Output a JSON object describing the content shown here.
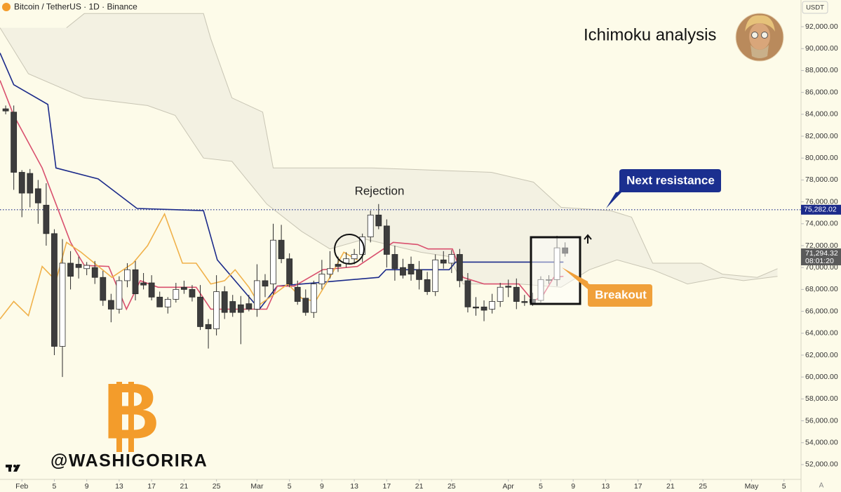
{
  "header": {
    "symbol": "Bitcoin / TetherUS · 1D · Binance",
    "currency": "USDT",
    "auto_scale": "A"
  },
  "chart_data": {
    "type": "candlestick",
    "title": "Ichimoku analysis",
    "xlim": [
      -0.7,
      98.1
    ],
    "ylim": [
      50650,
      94440
    ],
    "xticks": [
      {
        "value": 2,
        "label": "Feb"
      },
      {
        "value": 6,
        "label": "5"
      },
      {
        "value": 10,
        "label": "9"
      },
      {
        "value": 14,
        "label": "13"
      },
      {
        "value": 18,
        "label": "17"
      },
      {
        "value": 22,
        "label": "21"
      },
      {
        "value": 26,
        "label": "25"
      },
      {
        "value": 31,
        "label": "Mar"
      },
      {
        "value": 35,
        "label": "5"
      },
      {
        "value": 39,
        "label": "9"
      },
      {
        "value": 43,
        "label": "13"
      },
      {
        "value": 47,
        "label": "17"
      },
      {
        "value": 51,
        "label": "21"
      },
      {
        "value": 55,
        "label": "25"
      },
      {
        "value": 62,
        "label": "Apr"
      },
      {
        "value": 66,
        "label": "5"
      },
      {
        "value": 70,
        "label": "9"
      },
      {
        "value": 74,
        "label": "13"
      },
      {
        "value": 78,
        "label": "17"
      },
      {
        "value": 82,
        "label": "21"
      },
      {
        "value": 86,
        "label": "25"
      },
      {
        "value": 92,
        "label": "May"
      },
      {
        "value": 96,
        "label": "5"
      }
    ],
    "yticks": [
      {
        "value": 52000,
        "label": "52,000.00"
      },
      {
        "value": 54000,
        "label": "54,000.00"
      },
      {
        "value": 56000,
        "label": "56,000.00"
      },
      {
        "value": 58000,
        "label": "58,000.00"
      },
      {
        "value": 60000,
        "label": "60,000.00"
      },
      {
        "value": 62000,
        "label": "62,000.00"
      },
      {
        "value": 64000,
        "label": "64,000.00"
      },
      {
        "value": 66000,
        "label": "66,000.00"
      },
      {
        "value": 68000,
        "label": "68,000.00"
      },
      {
        "value": 70000,
        "label": "70,000.00"
      },
      {
        "value": 72000,
        "label": "72,000.00"
      },
      {
        "value": 74000,
        "label": "74,000.00"
      },
      {
        "value": 76000,
        "label": "76,000.00"
      },
      {
        "value": 78000,
        "label": "78,000.00"
      },
      {
        "value": 80000,
        "label": "80,000.00"
      },
      {
        "value": 82000,
        "label": "82,000.00"
      },
      {
        "value": 84000,
        "label": "84,000.00"
      },
      {
        "value": 86000,
        "label": "86,000.00"
      },
      {
        "value": 88000,
        "label": "88,000.00"
      },
      {
        "value": 90000,
        "label": "90,000.00"
      },
      {
        "value": 92000,
        "label": "92,000.00"
      }
    ],
    "colors": {
      "up": "#ffffff",
      "down": "#3d3d3d",
      "outline": "#2b2b2b"
    },
    "ohlc": [
      [
        84500,
        84800,
        84000,
        84300
      ],
      [
        84200,
        84800,
        77100,
        78700
      ],
      [
        78700,
        78900,
        74600,
        76800
      ],
      [
        78600,
        79000,
        75500,
        76800
      ],
      [
        77200,
        78000,
        74000,
        75900
      ],
      [
        75700,
        77700,
        72000,
        73100
      ],
      [
        73100,
        73500,
        62000,
        62800
      ],
      [
        62800,
        72600,
        60000,
        70400
      ],
      [
        70400,
        71500,
        68000,
        69200
      ],
      [
        70300,
        71000,
        69000,
        70000
      ],
      [
        69900,
        70500,
        69300,
        70200
      ],
      [
        70000,
        70600,
        68500,
        69100
      ],
      [
        69100,
        69700,
        66500,
        67000
      ],
      [
        67000,
        67600,
        65000,
        66200
      ],
      [
        66200,
        69200,
        65800,
        68800
      ],
      [
        68800,
        70400,
        68200,
        69800
      ],
      [
        69800,
        70600,
        67000,
        67600
      ],
      [
        68600,
        69500,
        68000,
        68400
      ],
      [
        68600,
        69300,
        67000,
        67300
      ],
      [
        67300,
        67800,
        66400,
        66400
      ],
      [
        66400,
        67300,
        65800,
        67100
      ],
      [
        67100,
        68600,
        66800,
        68000
      ],
      [
        68200,
        68800,
        67600,
        68000
      ],
      [
        68000,
        68400,
        66900,
        67300
      ],
      [
        67300,
        68400,
        64300,
        64600
      ],
      [
        64800,
        65300,
        62600,
        64400
      ],
      [
        64400,
        69300,
        63800,
        67800
      ],
      [
        67800,
        68300,
        65300,
        65900
      ],
      [
        66900,
        67500,
        65500,
        65900
      ],
      [
        66600,
        67400,
        63000,
        65900
      ],
      [
        66700,
        67500,
        66000,
        66200
      ],
      [
        66200,
        70300,
        65500,
        68800
      ],
      [
        68800,
        69400,
        67300,
        68300
      ],
      [
        68500,
        74000,
        67500,
        72500
      ],
      [
        72500,
        73900,
        70400,
        70800
      ],
      [
        70800,
        71300,
        68200,
        68500
      ],
      [
        68200,
        68800,
        66600,
        66900
      ],
      [
        67200,
        68000,
        65600,
        65900
      ],
      [
        65900,
        68800,
        65400,
        68500
      ],
      [
        68500,
        70700,
        68000,
        69400
      ],
      [
        69400,
        71500,
        69000,
        69900
      ],
      [
        70300,
        71000,
        69600,
        70100
      ],
      [
        70400,
        71400,
        70000,
        70800
      ],
      [
        70800,
        71700,
        70300,
        71200
      ],
      [
        71200,
        73100,
        70500,
        72800
      ],
      [
        72800,
        75200,
        72300,
        74800
      ],
      [
        74800,
        75800,
        73500,
        73800
      ],
      [
        73800,
        74400,
        70000,
        71200
      ],
      [
        71200,
        72000,
        68800,
        69900
      ],
      [
        70000,
        70800,
        69000,
        69300
      ],
      [
        70300,
        71000,
        68800,
        69400
      ],
      [
        69800,
        70600,
        68000,
        68900
      ],
      [
        68900,
        69600,
        67500,
        67800
      ],
      [
        67800,
        71200,
        67400,
        70700
      ],
      [
        70700,
        71500,
        69900,
        70400
      ],
      [
        70400,
        71600,
        69500,
        71200
      ],
      [
        71200,
        71700,
        68200,
        68800
      ],
      [
        68800,
        69500,
        65900,
        66400
      ],
      [
        66400,
        67300,
        65600,
        66300
      ],
      [
        66400,
        67000,
        65100,
        66100
      ],
      [
        66200,
        67600,
        65800,
        66900
      ],
      [
        66900,
        68600,
        66400,
        68200
      ],
      [
        68300,
        68900,
        67300,
        68200
      ],
      [
        68200,
        69000,
        66200,
        66900
      ],
      [
        66900,
        67500,
        66500,
        66800
      ],
      [
        67100,
        67700,
        66500,
        66800
      ],
      [
        67000,
        69200,
        66800,
        68900
      ],
      [
        68900,
        69300,
        68500,
        68900
      ],
      [
        68900,
        72900,
        68300,
        71800
      ],
      [
        71800,
        72300,
        71000,
        71300
      ]
    ],
    "cloud": {
      "color": "#f1efe0",
      "edge_color": "#c8c5b4",
      "upper": {
        "x": [
          7.5,
          9.7,
          24.4,
          25.3,
          27.9,
          31.7,
          33.0,
          45.2,
          59.9,
          65.1,
          68.5,
          74.6,
          77.2,
          79.8,
          85.8,
          88.4,
          92.7,
          95.2
        ],
        "values": [
          91900,
          93200,
          93200,
          90900,
          85500,
          84200,
          79100,
          79100,
          78700,
          77800,
          75500,
          75200,
          74600,
          70400,
          70400,
          69400,
          69100,
          69900
        ]
      },
      "lower": {
        "x": [
          -0.7,
          2.8,
          9.7,
          17.5,
          20.9,
          24.4,
          27.9,
          32.2,
          36.5,
          40.0,
          44.3,
          51.2,
          54.7,
          56.4,
          63.3,
          68.5,
          72.0,
          75.4,
          79.8,
          84.1,
          88.4,
          91.0,
          95.2
        ],
        "values": [
          91900,
          87700,
          85500,
          84800,
          83900,
          80000,
          79700,
          75800,
          73300,
          71700,
          72600,
          71400,
          71000,
          68500,
          68500,
          68200,
          69800,
          70700,
          69800,
          68500,
          69100,
          68800,
          69200
        ]
      }
    },
    "lines": [
      {
        "color": "#1b2a8a",
        "x": [
          -0.7,
          1.0,
          5.2,
          6.2,
          11.4,
          16.2,
          24.4,
          26.1,
          31.3,
          33.5,
          46.0,
          46.9,
          54.7,
          55.5,
          68.8
        ],
        "values": [
          89600,
          86700,
          84900,
          79100,
          78100,
          75400,
          75200,
          70700,
          66200,
          68300,
          69100,
          69800,
          69800,
          70500,
          70500
        ]
      },
      {
        "color": "#d9506e",
        "x": [
          -0.7,
          1.0,
          4.5,
          6.2,
          8.0,
          9.7,
          12.7,
          14.9,
          16.6,
          18.8,
          23.5,
          25.3,
          32.2,
          33.5,
          35.6,
          39.1,
          43.4,
          46.0,
          47.8,
          50.8,
          52.1,
          55.1,
          56.4,
          59.0,
          63.3,
          65.1,
          66.3,
          67.6,
          68.8
        ],
        "values": [
          87100,
          83900,
          79100,
          75800,
          72300,
          70200,
          70100,
          66200,
          68800,
          68200,
          68200,
          66200,
          66200,
          68300,
          68300,
          69800,
          70100,
          71400,
          72300,
          72100,
          71700,
          71700,
          69100,
          68500,
          68500,
          66900,
          67500,
          69100,
          69200
        ]
      },
      {
        "color": "#f0b14a",
        "x": [
          -0.7,
          1.0,
          2.8,
          4.5,
          6.2,
          7.5,
          9.3,
          13.1,
          15.7,
          17.5,
          19.6,
          21.8,
          23.5,
          25.3,
          27.0,
          28.3,
          30.0,
          31.3,
          33.0,
          34.8,
          36.5,
          38.2,
          40.0,
          41.7,
          43.4
        ],
        "values": [
          65300,
          66900,
          65600,
          70100,
          68800,
          72300,
          71400,
          69100,
          70400,
          72000,
          74900,
          70400,
          70400,
          68500,
          68800,
          69800,
          68200,
          66600,
          67500,
          68500,
          67200,
          66900,
          69100,
          71400,
          70700
        ]
      }
    ],
    "price_lines": [
      {
        "value": 75282.02,
        "label": "75,282.02",
        "color": "#1b2a8a"
      },
      {
        "value": 71294.32,
        "label": "71,294.32",
        "countdown": "08:01:20",
        "color": "#5a5a5a"
      }
    ],
    "annotations": [
      "Rejection",
      "Next resistance",
      "Breakout"
    ],
    "watermark": "@WASHIGORIRA"
  }
}
